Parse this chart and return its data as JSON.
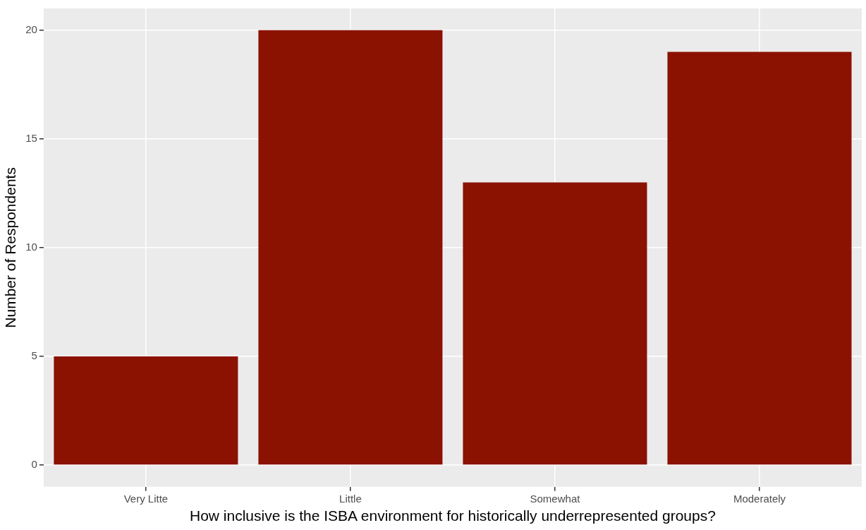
{
  "chart_data": {
    "type": "bar",
    "xlabel": "How inclusive is the ISBA environment for historically underrepresented groups?",
    "ylabel": "Number of Respondents",
    "categories": [
      "Very Litte",
      "Little",
      "Somewhat",
      "Moderately"
    ],
    "values": [
      5,
      20,
      13,
      19
    ],
    "color": "#8b1100",
    "ylim": [
      -1,
      21
    ],
    "yticks": [
      0,
      5,
      10,
      15,
      20
    ],
    "grid": true,
    "legend": false
  }
}
